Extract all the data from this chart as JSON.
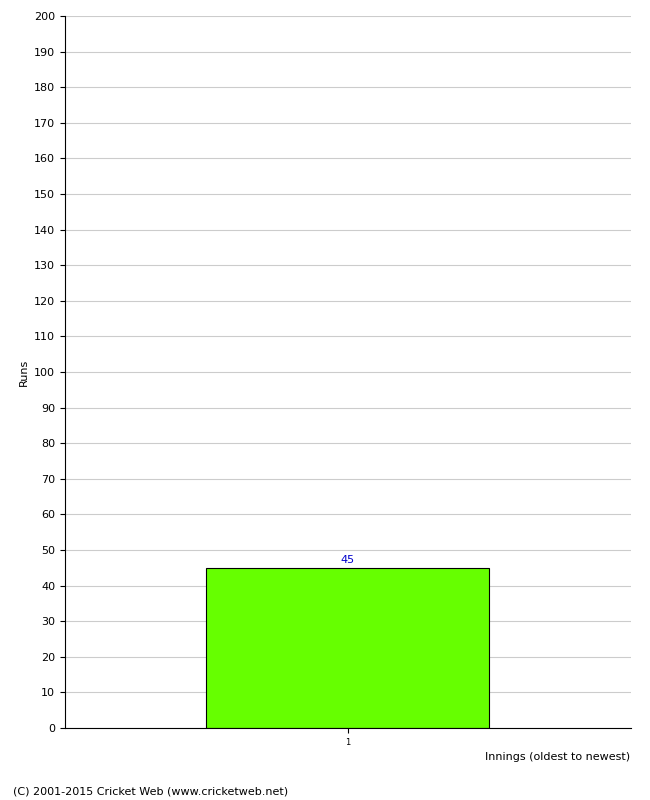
{
  "xlabel": "Innings (oldest to newest)",
  "ylabel": "Runs",
  "bar_values": [
    45
  ],
  "bar_positions": [
    1
  ],
  "bar_color": "#66ff00",
  "bar_edgecolor": "#000000",
  "value_label_color": "#0000cc",
  "ylim": [
    0,
    200
  ],
  "ytick_step": 10,
  "xtick_labels": [
    "1"
  ],
  "background_color": "#ffffff",
  "grid_color": "#cccccc",
  "footer_text": "(C) 2001-2015 Cricket Web (www.cricketweb.net)",
  "xlabel_fontsize": 8,
  "ylabel_fontsize": 8,
  "footer_fontsize": 8,
  "value_label_fontsize": 8,
  "tick_fontsize": 8,
  "bar_width": 0.5
}
